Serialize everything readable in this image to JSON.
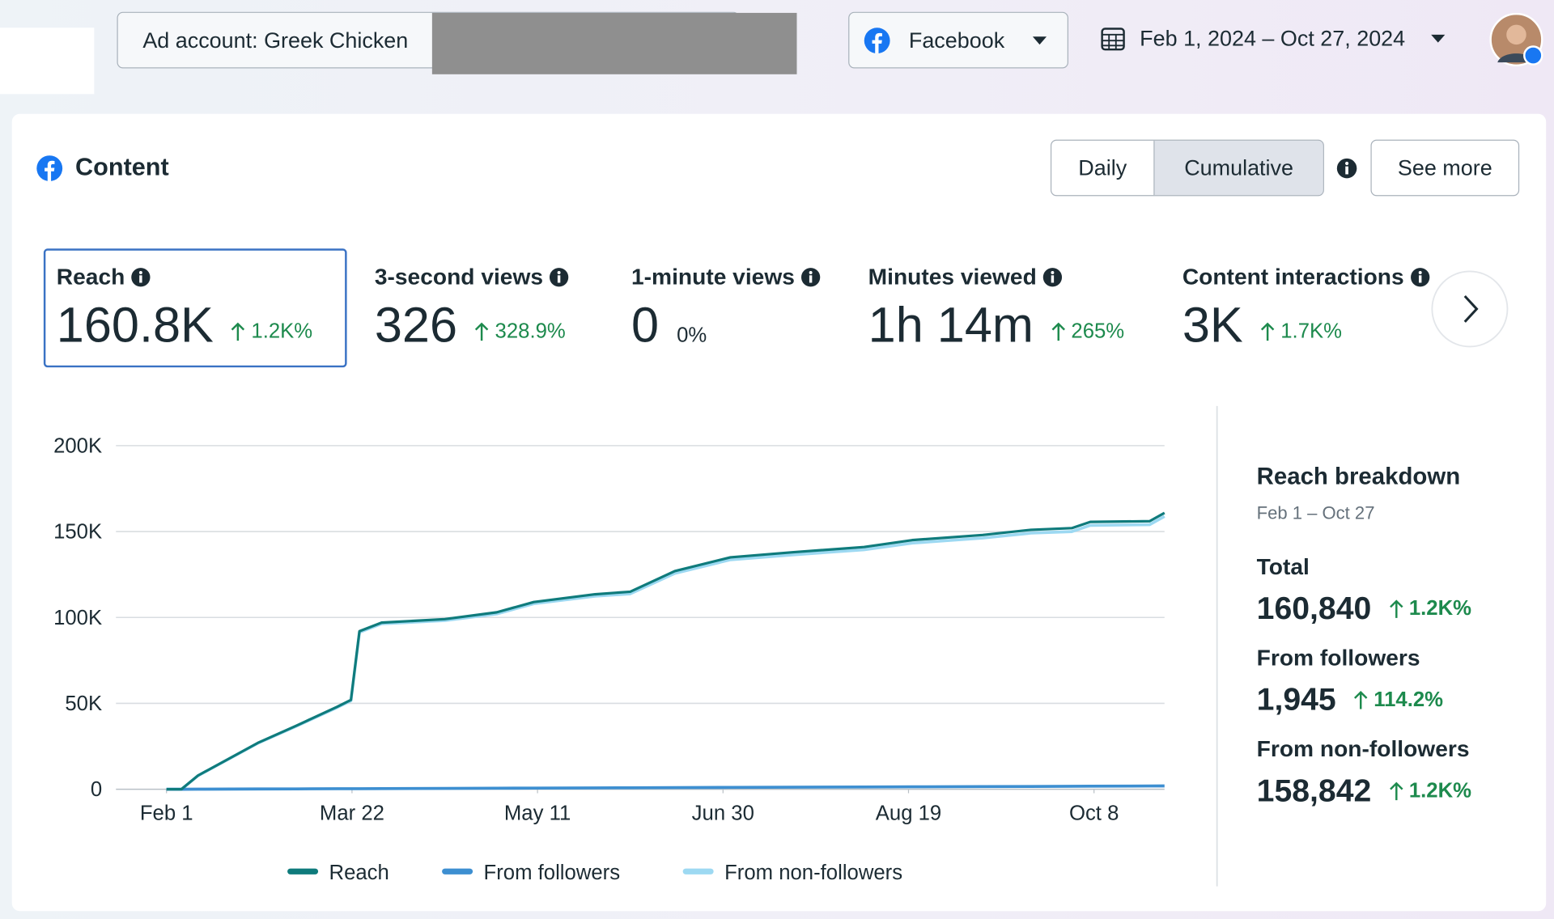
{
  "header": {
    "account": "Ad account: Greek Chicken",
    "platform": "Facebook",
    "date_range": "Feb 1, 2024 – Oct 27, 2024"
  },
  "panel": {
    "title": "Content",
    "toggle": [
      "Daily",
      "Cumulative"
    ],
    "see_more": "See more"
  },
  "metrics": [
    {
      "label": "Reach",
      "value": "160.8K",
      "change": "1.2K%",
      "up": true
    },
    {
      "label": "3-second views",
      "value": "326",
      "change": "328.9%",
      "up": true
    },
    {
      "label": "1-minute views",
      "value": "0",
      "change": "0%",
      "up": false
    },
    {
      "label": "Minutes viewed",
      "value": "1h 14m",
      "change": "265%",
      "up": true
    },
    {
      "label": "Content interactions",
      "value": "3K",
      "change": "1.7K%",
      "up": true
    }
  ],
  "breakdown": {
    "title": "Reach breakdown",
    "period": "Feb 1 – Oct 27",
    "rows": [
      {
        "label": "Total",
        "value": "160,840",
        "change": "1.2K%"
      },
      {
        "label": "From followers",
        "value": "1,945",
        "change": "114.2%"
      },
      {
        "label": "From non-followers",
        "value": "158,842",
        "change": "1.2K%"
      }
    ]
  },
  "chart_data": {
    "type": "line",
    "x": [
      0,
      4,
      8.5,
      24.6,
      35,
      46,
      49.7,
      52,
      58,
      75,
      89,
      99,
      115.5,
      125,
      137,
      152,
      169,
      188,
      201,
      220,
      233,
      244,
      249,
      265,
      269
    ],
    "xlim": [
      0,
      269
    ],
    "xticks": [
      {
        "value": 0,
        "label": "Feb 1"
      },
      {
        "value": 50,
        "label": "Mar 22"
      },
      {
        "value": 100,
        "label": "May 11"
      },
      {
        "value": 150,
        "label": "Jun 30"
      },
      {
        "value": 200,
        "label": "Aug 19"
      },
      {
        "value": 250,
        "label": "Oct 8"
      }
    ],
    "ylim": [
      0,
      200000
    ],
    "yticks": [
      {
        "value": 0,
        "label": "0"
      },
      {
        "value": 50000,
        "label": "50K"
      },
      {
        "value": 100000,
        "label": "100K"
      },
      {
        "value": 150000,
        "label": "150K"
      },
      {
        "value": 200000,
        "label": "200K"
      }
    ],
    "grid": true,
    "series": [
      {
        "name": "From non-followers",
        "color": "#9dd9f2",
        "values": [
          0,
          0,
          7900,
          26800,
          36700,
          47600,
          51500,
          91400,
          96300,
          98200,
          102100,
          108000,
          112400,
          113800,
          125700,
          133600,
          136500,
          139400,
          143300,
          146200,
          149100,
          150000,
          153600,
          154000,
          158842
        ]
      },
      {
        "name": "From followers",
        "color": "#3d8fd1",
        "values": [
          0,
          10,
          60,
          180,
          250,
          330,
          350,
          370,
          410,
          530,
          630,
          700,
          810,
          880,
          960,
          1070,
          1190,
          1320,
          1420,
          1550,
          1640,
          1720,
          1760,
          1880,
          1945
        ]
      },
      {
        "name": "Reach",
        "color": "#0f7b7c",
        "values": [
          0,
          0,
          8000,
          27000,
          37000,
          48000,
          52000,
          92000,
          97000,
          99000,
          103000,
          109000,
          113500,
          115000,
          127000,
          135000,
          138000,
          141000,
          145000,
          148000,
          151000,
          152000,
          155600,
          156000,
          160840
        ]
      }
    ]
  }
}
